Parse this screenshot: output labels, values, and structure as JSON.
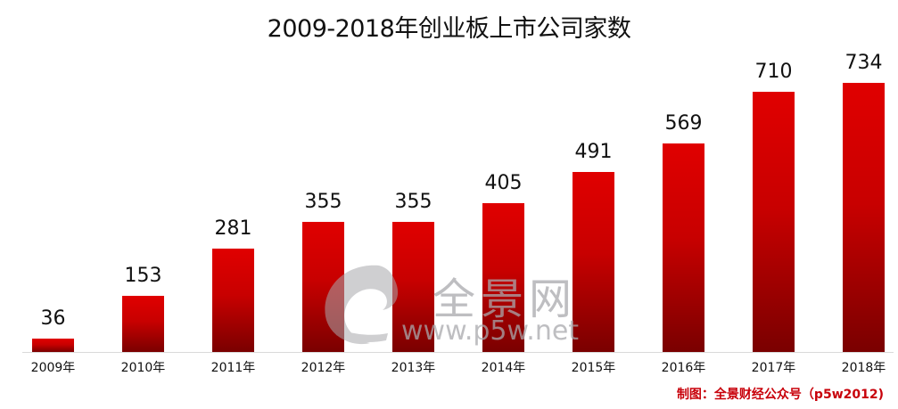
{
  "title": "2009-2018年创业板上市公司家数",
  "credit": "制图：全景财经公众号（p5w2012)",
  "watermark": {
    "name": "全景网",
    "url": "www.p5w.net"
  },
  "colors": {
    "bar_top": "#e00000",
    "bar_bottom": "#7a0000",
    "credit": "#c8000a",
    "axis": "#d9d9d9"
  },
  "chart_data": {
    "type": "bar",
    "title": "2009-2018年创业板上市公司家数",
    "xlabel": "",
    "ylabel": "",
    "categories": [
      "2009年",
      "2010年",
      "2011年",
      "2012年",
      "2013年",
      "2014年",
      "2015年",
      "2016年",
      "2017年",
      "2018年"
    ],
    "values": [
      36,
      153,
      281,
      355,
      355,
      405,
      491,
      569,
      710,
      734
    ],
    "ylim": [
      0,
      734
    ],
    "grid": false,
    "legend": "none",
    "data_labels": true
  }
}
